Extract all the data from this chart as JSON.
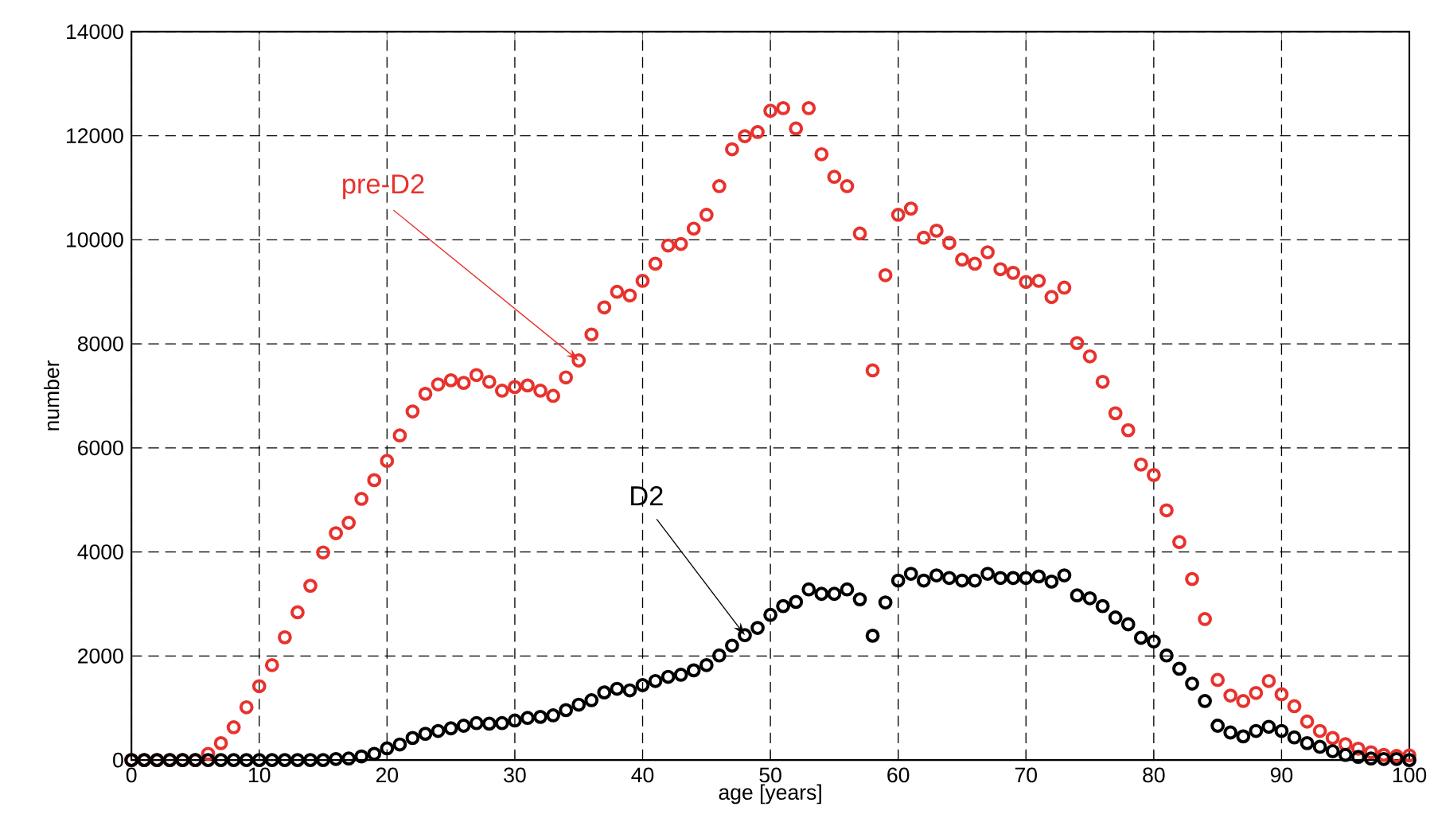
{
  "chart_data": {
    "type": "scatter",
    "xlabel": "age [years]",
    "ylabel": "number",
    "x": [
      0,
      1,
      2,
      3,
      4,
      5,
      6,
      7,
      8,
      9,
      10,
      11,
      12,
      13,
      14,
      15,
      16,
      17,
      18,
      19,
      20,
      21,
      22,
      23,
      24,
      25,
      26,
      27,
      28,
      29,
      30,
      31,
      32,
      33,
      34,
      35,
      36,
      37,
      38,
      39,
      40,
      41,
      42,
      43,
      44,
      45,
      46,
      47,
      48,
      49,
      50,
      51,
      52,
      53,
      54,
      55,
      56,
      57,
      58,
      59,
      60,
      61,
      62,
      63,
      64,
      65,
      66,
      67,
      68,
      69,
      70,
      71,
      72,
      73,
      74,
      75,
      76,
      77,
      78,
      79,
      80,
      81,
      82,
      83,
      84,
      85,
      86,
      87,
      88,
      89,
      90,
      91,
      92,
      93,
      94,
      95,
      96,
      97,
      98,
      99,
      100
    ],
    "series": [
      {
        "color": "#e8322d",
        "values": [
          0,
          0,
          0,
          0,
          0,
          0,
          120,
          325,
          630,
          1015,
          1420,
          1825,
          2360,
          2840,
          3350,
          3990,
          4360,
          4560,
          5020,
          5380,
          5750,
          6240,
          6700,
          7040,
          7220,
          7300,
          7250,
          7400,
          7270,
          7100,
          7170,
          7200,
          7100,
          7000,
          7355,
          7680,
          8180,
          8700,
          9000,
          8930,
          9210,
          9540,
          9890,
          9920,
          10215,
          10480,
          11030,
          11740,
          11990,
          12070,
          12480,
          12530,
          12140,
          12530,
          11645,
          11210,
          11030,
          10120,
          7490,
          9320,
          10480,
          10600,
          10040,
          10175,
          9940,
          9620,
          9540,
          9760,
          9435,
          9365,
          9190,
          9210,
          8900,
          9080,
          8015,
          7760,
          7270,
          6665,
          6340,
          5680,
          5480,
          4800,
          4190,
          3480,
          2710,
          1540,
          1240,
          1135,
          1290,
          1520,
          1265,
          1035,
          740,
          560,
          425,
          305,
          220,
          150,
          100,
          80,
          90
        ]
      },
      {
        "color": "#000000",
        "values": [
          0,
          0,
          0,
          0,
          0,
          0,
          0,
          0,
          0,
          0,
          0,
          0,
          0,
          0,
          0,
          0,
          20,
          30,
          70,
          120,
          225,
          300,
          425,
          505,
          560,
          610,
          660,
          710,
          700,
          710,
          760,
          810,
          830,
          860,
          960,
          1065,
          1150,
          1300,
          1370,
          1340,
          1440,
          1520,
          1600,
          1640,
          1725,
          1825,
          2010,
          2200,
          2400,
          2540,
          2790,
          2960,
          3040,
          3280,
          3195,
          3195,
          3280,
          3090,
          2390,
          3030,
          3450,
          3580,
          3450,
          3550,
          3500,
          3450,
          3450,
          3580,
          3500,
          3500,
          3500,
          3530,
          3430,
          3550,
          3165,
          3110,
          2960,
          2740,
          2610,
          2350,
          2280,
          2010,
          1755,
          1470,
          1135,
          660,
          530,
          455,
          560,
          640,
          560,
          435,
          325,
          255,
          170,
          100,
          60,
          30,
          20,
          20,
          0
        ]
      }
    ],
    "annotations": [
      {
        "text": "pre-D2",
        "x": 35,
        "y": 7680
      },
      {
        "text": "D2",
        "x": 48,
        "y": 2400
      }
    ],
    "xlim": [
      0,
      100
    ],
    "xticks": [
      0,
      10,
      20,
      30,
      40,
      50,
      60,
      70,
      80,
      90,
      100
    ],
    "ylim": [
      0,
      14000
    ],
    "yticks": [
      0,
      2000,
      4000,
      6000,
      8000,
      10000,
      12000,
      14000
    ],
    "grid": true,
    "marker": "circle"
  }
}
